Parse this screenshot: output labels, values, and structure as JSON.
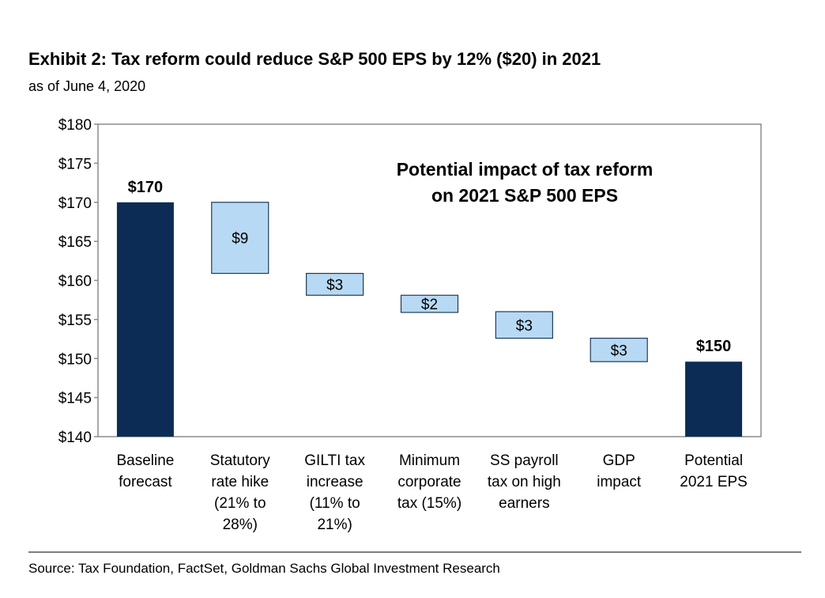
{
  "title": "Exhibit 2: Tax reform could reduce S&P 500 EPS by 12% ($20) in 2021",
  "subtitle": "as of June 4, 2020",
  "source": "Source: Tax Foundation, FactSet, Goldman Sachs Global Investment Research",
  "chart_data": {
    "type": "bar",
    "subtype": "waterfall",
    "annotation": [
      "Potential impact of tax reform",
      "on 2021 S&P 500 EPS"
    ],
    "ylim": [
      140,
      180
    ],
    "y_ticks": [
      140,
      145,
      150,
      155,
      160,
      165,
      170,
      175,
      180
    ],
    "y_tick_labels": [
      "$140",
      "$145",
      "$150",
      "$155",
      "$160",
      "$165",
      "$170",
      "$175",
      "$180"
    ],
    "grid": false,
    "legend": "none",
    "colors": {
      "total": "#0c2c55",
      "step": "#b8d9f3",
      "step_border": "#1f3a5a",
      "frame": "#8c8c8c"
    },
    "bars": [
      {
        "category": [
          "Baseline",
          "forecast"
        ],
        "kind": "total",
        "bottom": 140,
        "top": 170,
        "label": "$170"
      },
      {
        "category": [
          "Statutory",
          "rate hike",
          "(21% to",
          "28%)"
        ],
        "kind": "step",
        "bottom": 160.9,
        "top": 170,
        "label": "$9"
      },
      {
        "category": [
          "GILTI tax",
          "increase",
          "(11% to",
          "21%)"
        ],
        "kind": "step",
        "bottom": 158.1,
        "top": 160.9,
        "label": "$3"
      },
      {
        "category": [
          "Minimum",
          "corporate",
          "tax (15%)"
        ],
        "kind": "step",
        "bottom": 155.9,
        "top": 158.1,
        "label": "$2"
      },
      {
        "category": [
          "SS payroll",
          "tax on high",
          "earners"
        ],
        "kind": "step",
        "bottom": 152.6,
        "top": 156.0,
        "label": "$3"
      },
      {
        "category": [
          "GDP",
          "impact"
        ],
        "kind": "step",
        "bottom": 149.6,
        "top": 152.6,
        "label": "$3"
      },
      {
        "category": [
          "Potential",
          "2021 EPS"
        ],
        "kind": "total",
        "bottom": 140,
        "top": 149.6,
        "label": "$150"
      }
    ]
  }
}
